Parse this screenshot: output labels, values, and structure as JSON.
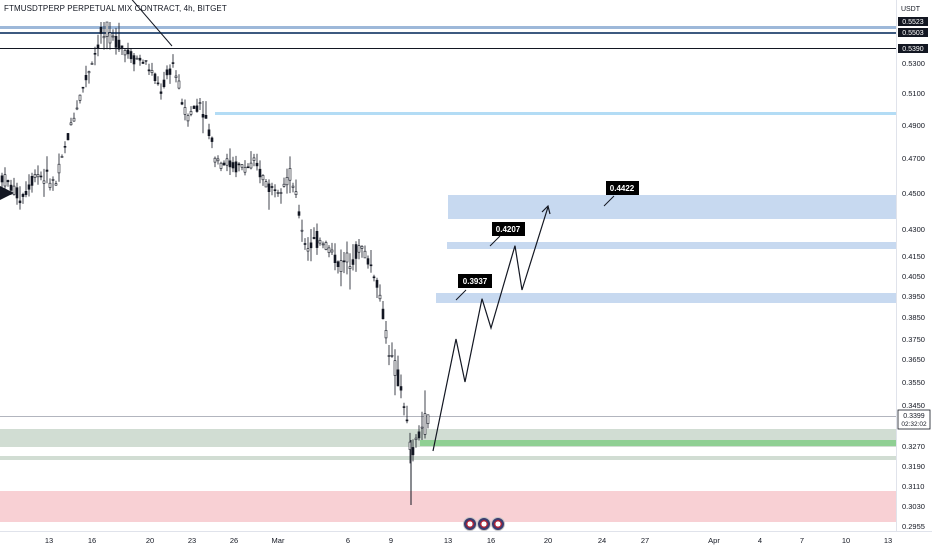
{
  "header": {
    "symbol_line": "FTMUSDTPERP PERPETUAL MIX CONTRACT, 4h, BITGET",
    "currency": "USDT"
  },
  "price_axis": {
    "ticks": [
      "0.5300",
      "0.5100",
      "0.4900",
      "0.4700",
      "0.4500",
      "0.4300",
      "0.4150",
      "0.4050",
      "0.3950",
      "0.3850",
      "0.3750",
      "0.3650",
      "0.3550",
      "0.3450",
      "0.3270",
      "0.3190",
      "0.3110",
      "0.3030",
      "0.2955"
    ],
    "tags": [
      {
        "text": "0.5523",
        "value": 0.5523,
        "bg": "#131722",
        "fg": "#ffffff"
      },
      {
        "text": "0.5503",
        "value": 0.5503,
        "bg": "#131722",
        "fg": "#ffffff"
      },
      {
        "text": "0.5390",
        "value": 0.539,
        "bg": "#131722",
        "fg": "#ffffff"
      }
    ],
    "last_price": {
      "price": "0.3399",
      "countdown": "02:32:02",
      "bg": "#ffffff",
      "fg": "#131722"
    }
  },
  "time_axis": {
    "ticks": [
      "13",
      "16",
      "20",
      "23",
      "26",
      "Mar",
      "6",
      "9",
      "13",
      "16",
      "20",
      "24",
      "27",
      "Apr",
      "4",
      "7",
      "10",
      "13"
    ]
  },
  "annotations": [
    {
      "text": "0.3937"
    },
    {
      "text": "0.4207"
    },
    {
      "text": "0.4422"
    }
  ],
  "colors": {
    "up": "#089981",
    "down": "#131722",
    "candle": "#131722",
    "zone_blue": "#c7d9f0",
    "zone_blue_light": "#b3dcf5",
    "zone_green": "#b7d4bd",
    "zone_green_line": "#7bc47f",
    "zone_red": "#f8c8cc",
    "label_bg": "#000000"
  },
  "events": {
    "flags": [
      "us-flag-icon",
      "us-flag-icon",
      "us-flag-icon"
    ]
  },
  "chart_data": {
    "type": "candlestick",
    "title": "FTMUSDTPERP PERPETUAL MIX CONTRACT, 4h, BITGET",
    "ylabel": "USDT",
    "ylim": [
      0.2955,
      0.5523
    ],
    "zones": [
      {
        "kind": "resistance-line",
        "value": 0.5523
      },
      {
        "kind": "resistance-line",
        "value": 0.5503
      },
      {
        "kind": "resistance-line",
        "value": 0.539
      },
      {
        "kind": "supply-line",
        "value": 0.496
      },
      {
        "kind": "target-zone",
        "from": 0.4375,
        "to": 0.446
      },
      {
        "kind": "target-zone",
        "from": 0.417,
        "to": 0.419
      },
      {
        "kind": "target-zone",
        "from": 0.392,
        "to": 0.395
      },
      {
        "kind": "support-zone",
        "from": 0.323,
        "to": 0.327
      },
      {
        "kind": "support-zone",
        "from": 0.319,
        "to": 0.32
      },
      {
        "kind": "demand-zone",
        "from": 0.299,
        "to": 0.31
      }
    ],
    "targets": [
      0.3937,
      0.4207,
      0.4422
    ],
    "projected_path": [
      0.325,
      0.375,
      0.355,
      0.3937,
      0.38,
      0.4207,
      0.398,
      0.4422
    ],
    "last_price": 0.3399
  }
}
